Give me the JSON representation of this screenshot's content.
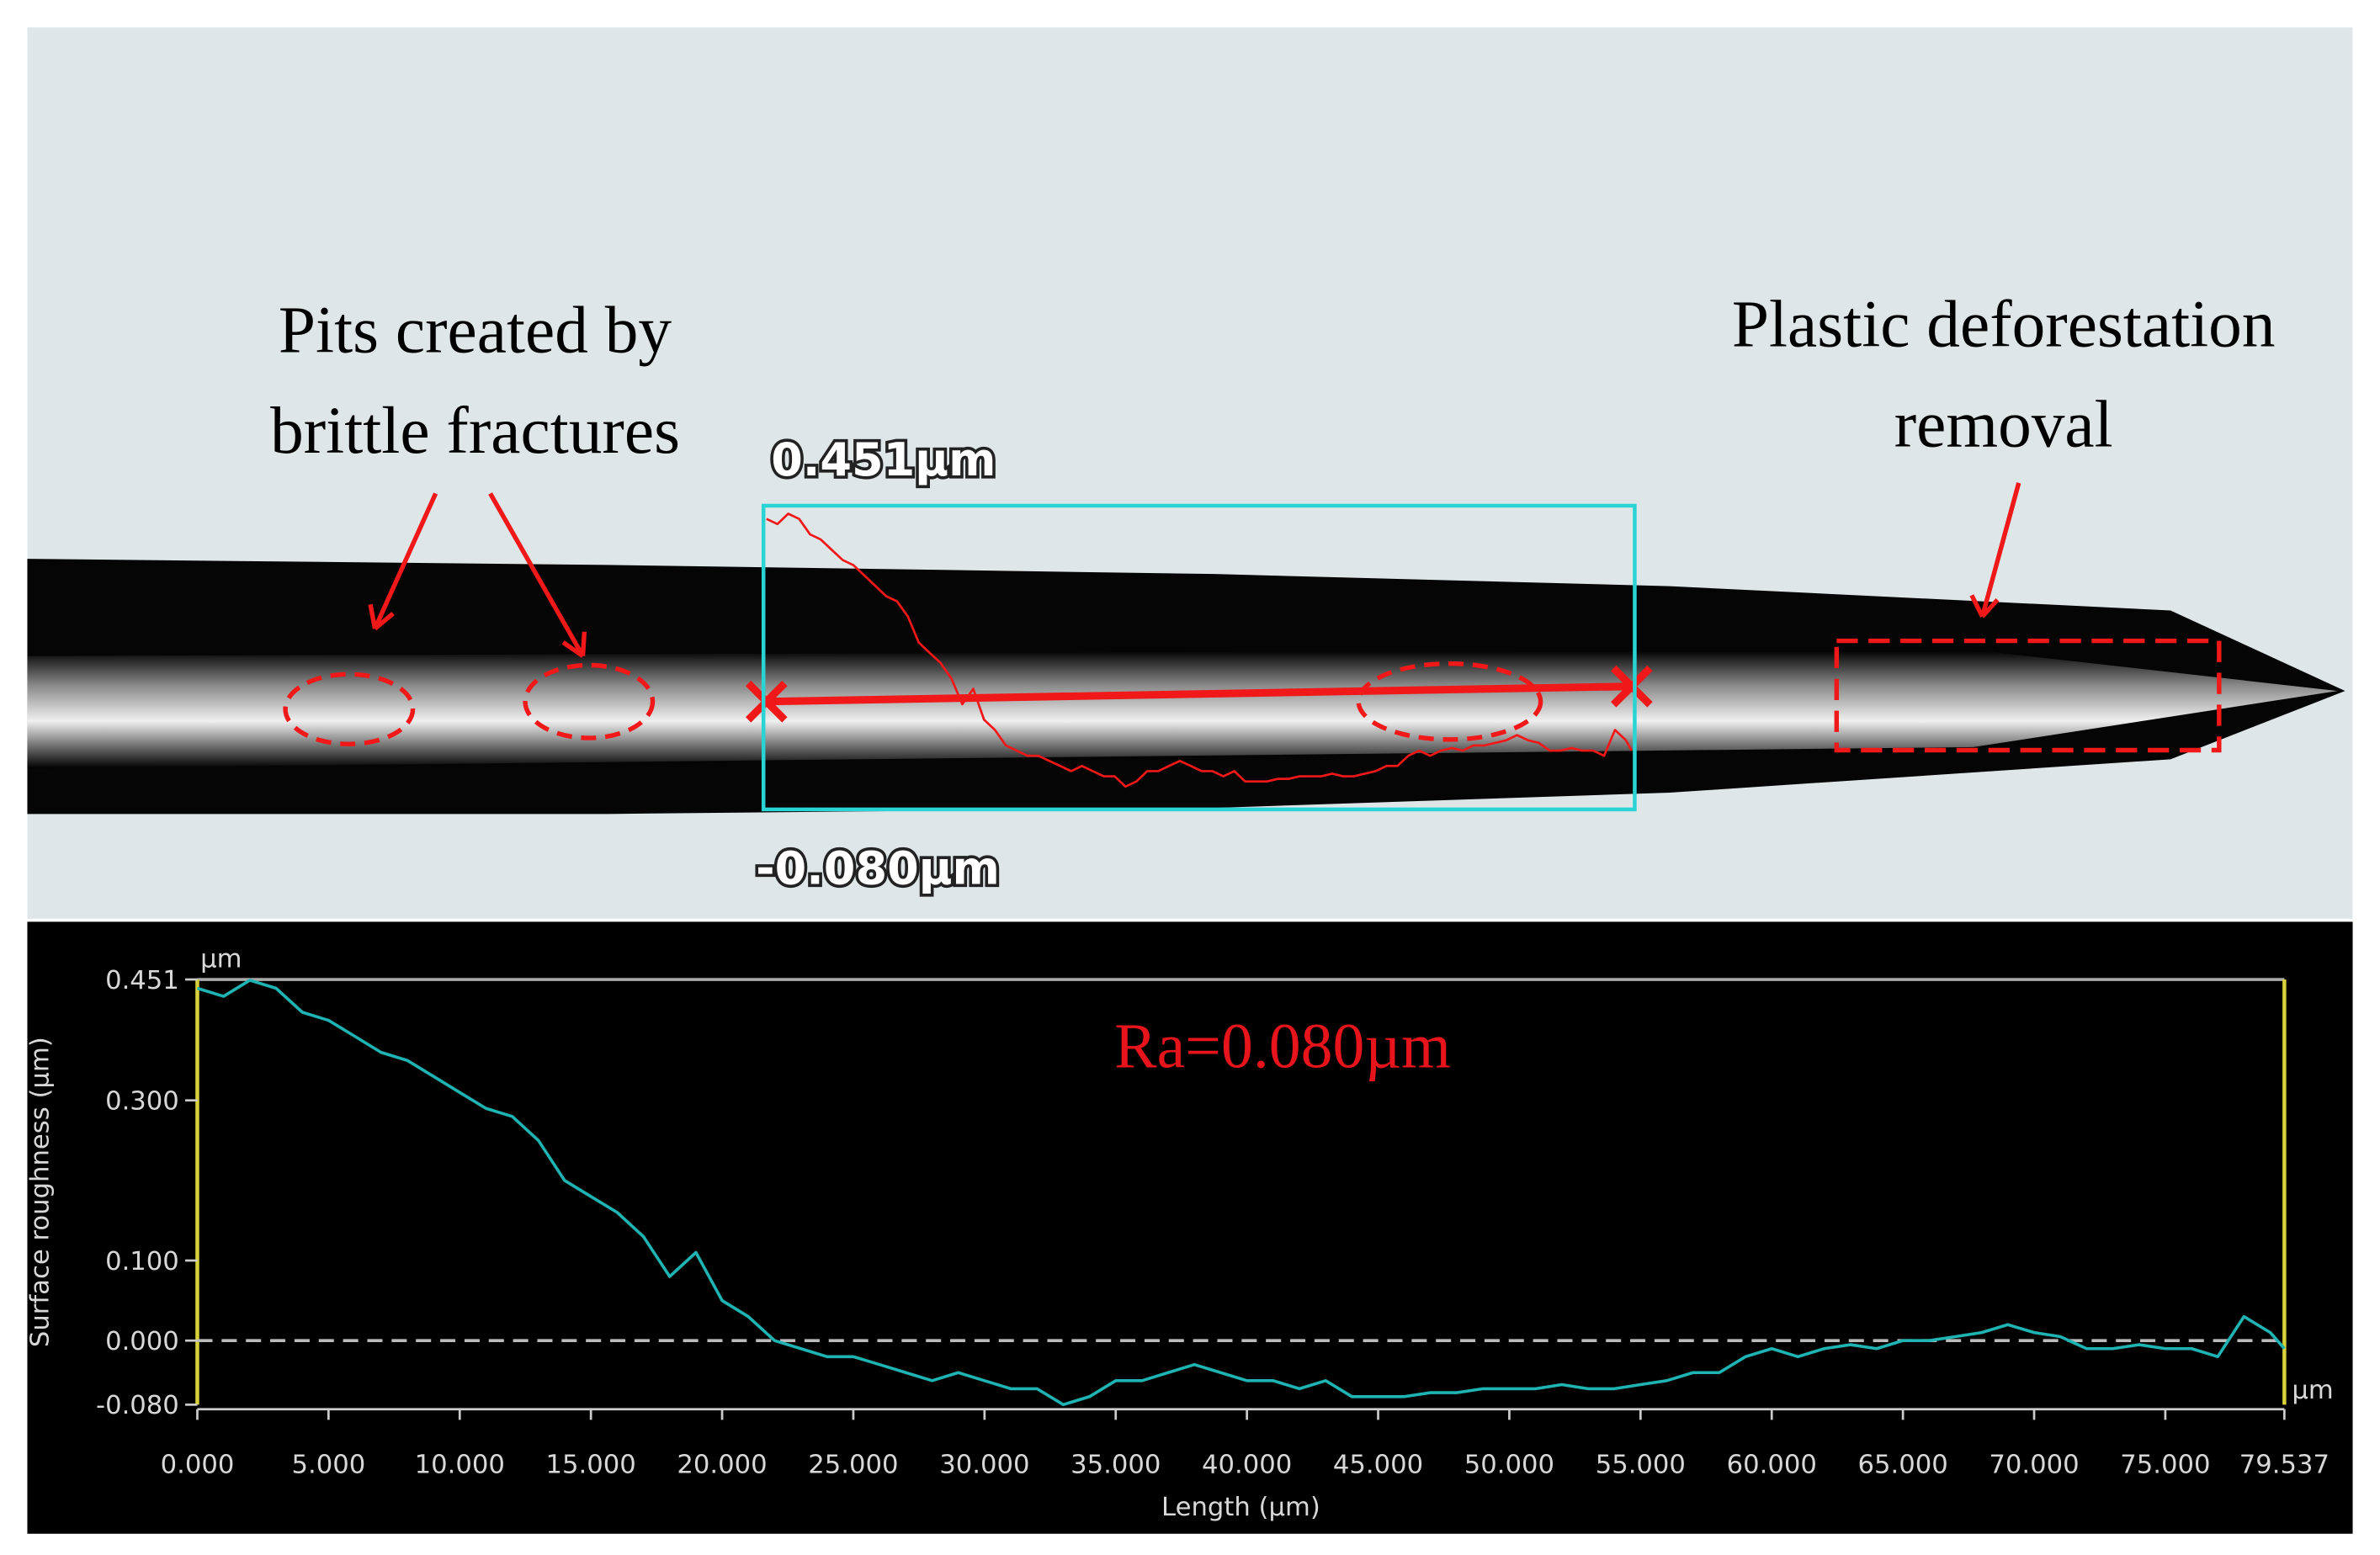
{
  "image": {
    "left_note": [
      "Pits created by",
      "brittle fractures"
    ],
    "right_note": [
      "Plastic deforestation",
      "removal"
    ],
    "max_label": "0.451µm",
    "min_label": "-0.080µm"
  },
  "chart_data": {
    "type": "line",
    "x_label": "Length (µm)",
    "y_label": "Surface roughness (µm)",
    "x_unit": "µm",
    "y_unit": "µm",
    "annotation": "Ra=0.080µm",
    "annotation_color": "#e8141c",
    "reference_line": 0,
    "xlim": [
      0,
      79.537
    ],
    "ylim": [
      -0.08,
      0.451
    ],
    "xticks": [
      {
        "value": 0,
        "label": "0.000"
      },
      {
        "value": 5,
        "label": "5.000"
      },
      {
        "value": 10,
        "label": "10.000"
      },
      {
        "value": 15,
        "label": "15.000"
      },
      {
        "value": 20,
        "label": "20.000"
      },
      {
        "value": 25,
        "label": "25.000"
      },
      {
        "value": 30,
        "label": "30.000"
      },
      {
        "value": 35,
        "label": "35.000"
      },
      {
        "value": 40,
        "label": "40.000"
      },
      {
        "value": 45,
        "label": "45.000"
      },
      {
        "value": 50,
        "label": "50.000"
      },
      {
        "value": 55,
        "label": "55.000"
      },
      {
        "value": 60,
        "label": "60.000"
      },
      {
        "value": 65,
        "label": "65.000"
      },
      {
        "value": 70,
        "label": "70.000"
      },
      {
        "value": 75,
        "label": "75.000"
      },
      79.537
    ],
    "yticks": [
      0.451,
      {
        "value": 0.3,
        "label": "0.300"
      },
      {
        "value": 0.1,
        "label": "0.100"
      },
      {
        "value": 0,
        "label": "0.000"
      },
      {
        "value": -0.08,
        "label": "-0.080"
      }
    ],
    "x": [
      0,
      1,
      2,
      3,
      4,
      5,
      6,
      7,
      8,
      9,
      10,
      11,
      12,
      13,
      14,
      15,
      16,
      17,
      18,
      19,
      20,
      21,
      22,
      23,
      24,
      25,
      26,
      27,
      28,
      29,
      30,
      31,
      32,
      33,
      34,
      35,
      36,
      37,
      38,
      39,
      40,
      41,
      42,
      43,
      44,
      45,
      46,
      47,
      48,
      49,
      50,
      51,
      52,
      53,
      54,
      55,
      56,
      57,
      58,
      59,
      60,
      61,
      62,
      63,
      64,
      65,
      66,
      67,
      68,
      69,
      70,
      71,
      72,
      73,
      74,
      75,
      76,
      77,
      78,
      79,
      79.537
    ],
    "series": [
      {
        "color": "#1fb3b3",
        "values": [
          0.44,
          0.43,
          0.45,
          0.44,
          0.41,
          0.4,
          0.38,
          0.36,
          0.35,
          0.33,
          0.31,
          0.29,
          0.28,
          0.25,
          0.2,
          0.18,
          0.16,
          0.13,
          0.08,
          0.11,
          0.05,
          0.03,
          0.0,
          -0.01,
          -0.02,
          -0.02,
          -0.03,
          -0.04,
          -0.05,
          -0.04,
          -0.05,
          -0.06,
          -0.06,
          -0.08,
          -0.07,
          -0.05,
          -0.05,
          -0.04,
          -0.03,
          -0.04,
          -0.05,
          -0.05,
          -0.06,
          -0.05,
          -0.07,
          -0.07,
          -0.07,
          -0.065,
          -0.065,
          -0.06,
          -0.06,
          -0.06,
          -0.055,
          -0.06,
          -0.06,
          -0.055,
          -0.05,
          -0.04,
          -0.04,
          -0.02,
          -0.01,
          -0.02,
          -0.01,
          -0.005,
          -0.01,
          0.0,
          0.0,
          0.005,
          0.01,
          0.02,
          0.01,
          0.005,
          -0.01,
          -0.01,
          -0.005,
          -0.01,
          -0.01,
          -0.02,
          0.03,
          0.01,
          -0.01
        ]
      }
    ]
  }
}
